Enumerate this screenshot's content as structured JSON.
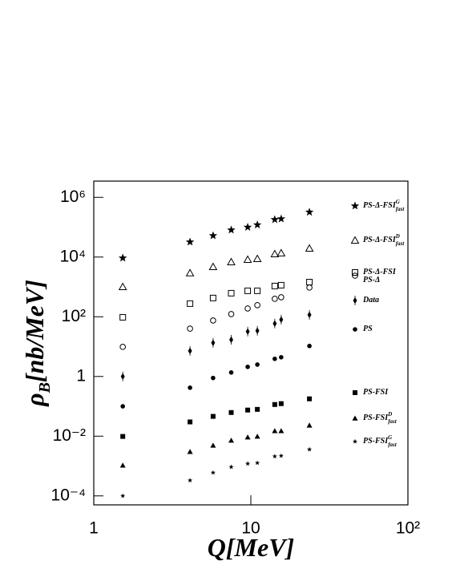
{
  "chart_data": {
    "type": "scatter",
    "x_label": "Q[MeV]",
    "y_label": "ρ",
    "y_label_sub": "B",
    "y_label_rest": "[nb/MeV]",
    "log_x": true,
    "log_y": true,
    "xlim": [
      1,
      100
    ],
    "xticks": [
      1,
      10,
      {
        "value": 100,
        "label": "10²"
      }
    ],
    "ylim": [
      5e-05,
      3500000
    ],
    "yticks": [
      {
        "value": 0.0001,
        "label": "10⁻⁴"
      },
      {
        "value": 0.01,
        "label": "10⁻²"
      },
      1,
      {
        "value": 100,
        "label": "10²"
      },
      {
        "value": 10000,
        "label": "10⁴"
      },
      {
        "value": 1000000,
        "label": "10⁶"
      }
    ],
    "x": [
      1.53,
      4.1,
      5.75,
      7.5,
      9.55,
      11.0,
      14.2,
      15.6,
      23.6
    ],
    "series": [
      {
        "name": "PS-Δ-FSI",
        "sub": "fast",
        "sup": "G",
        "marker": "star",
        "color": "#000000",
        "values": [
          9300,
          32000,
          52000,
          81000,
          100000,
          120000,
          180000,
          190000,
          320000
        ]
      },
      {
        "name": "PS-Δ-FSI",
        "sub": "fast",
        "sup": "D",
        "marker": "triangle-open",
        "color": "#000000",
        "values": [
          1000,
          2900,
          4700,
          6800,
          8200,
          8700,
          12600,
          13500,
          19500
        ]
      },
      {
        "name": "PS-Δ-FSI",
        "marker": "square-open",
        "color": "#000000",
        "values": [
          96,
          275,
          425,
          615,
          740,
          740,
          1070,
          1140,
          1450
        ]
      },
      {
        "name": "PS-Δ",
        "marker": "circle-open",
        "color": "#000000",
        "values": [
          9.8,
          40,
          75,
          123,
          190,
          245,
          400,
          450,
          950
        ]
      },
      {
        "name": "Data",
        "marker": "diamond",
        "color": "#000000",
        "values": [
          1.0,
          7.2,
          13.4,
          17,
          32,
          34,
          59,
          80,
          116
        ]
      },
      {
        "name": "PS",
        "marker": "circle",
        "color": "#000000",
        "values": [
          0.1,
          0.42,
          0.89,
          1.36,
          2.1,
          2.5,
          3.9,
          4.4,
          10.5
        ]
      },
      {
        "name": "PS-FSI",
        "marker": "square",
        "color": "#000000",
        "values": [
          0.0098,
          0.03,
          0.046,
          0.062,
          0.075,
          0.079,
          0.115,
          0.123,
          0.178
        ]
      },
      {
        "name": "PS-FSI",
        "sub": "fast",
        "sup": "D",
        "marker": "triangle",
        "color": "#000000",
        "values": [
          0.00105,
          0.003,
          0.0049,
          0.0072,
          0.0092,
          0.0098,
          0.015,
          0.015,
          0.023
        ]
      },
      {
        "name": "PS-FSI",
        "sub": "fast",
        "sup": "G",
        "marker": "star-small",
        "color": "#000000",
        "values": [
          0.0001,
          0.00033,
          0.0006,
          0.00093,
          0.0012,
          0.00127,
          0.0021,
          0.0022,
          0.0036
        ]
      }
    ]
  }
}
